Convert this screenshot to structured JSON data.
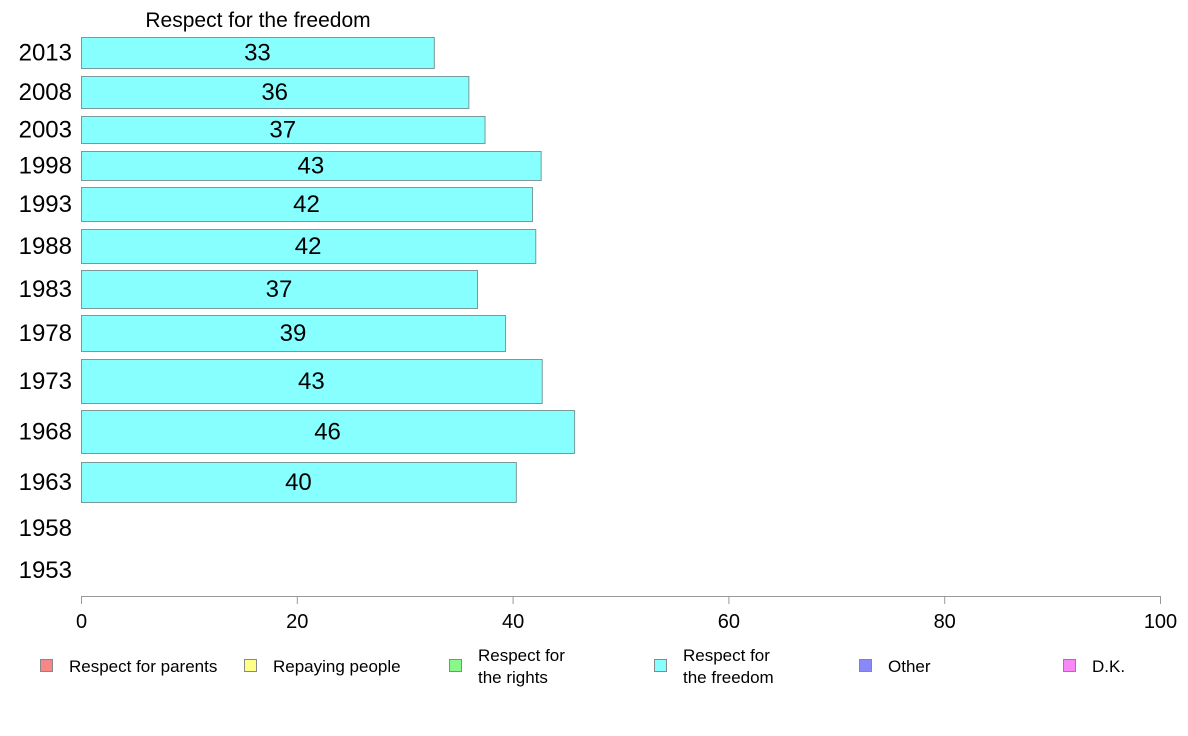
{
  "chart_data": {
    "type": "bar",
    "title": "Respect for the freedom",
    "categories": [
      "2013",
      "2008",
      "2003",
      "1998",
      "1993",
      "1988",
      "1983",
      "1978",
      "1973",
      "1968",
      "1963",
      "1958",
      "1953"
    ],
    "values": [
      32.7,
      35.9,
      37.4,
      42.6,
      41.8,
      42.1,
      36.7,
      39.3,
      42.7,
      45.7,
      40.3,
      null,
      null
    ],
    "labels": [
      "33",
      "36",
      "37",
      "43",
      "42",
      "42",
      "37",
      "39",
      "43",
      "46",
      "40",
      "",
      ""
    ],
    "xlim": [
      0,
      100
    ],
    "xticks": [
      "0",
      "20",
      "40",
      "60",
      "80",
      "100"
    ],
    "legend": [
      {
        "lines": [
          "Respect for parents"
        ],
        "color": "#f88888"
      },
      {
        "lines": [
          "Repaying people"
        ],
        "color": "#ffff88"
      },
      {
        "lines": [
          "Respect for",
          "the rights"
        ],
        "color": "#88f888"
      },
      {
        "lines": [
          "Respect for",
          "the freedom"
        ],
        "color": "#88ffff"
      },
      {
        "lines": [
          "Other"
        ],
        "color": "#8888f8"
      },
      {
        "lines": [
          "D.K."
        ],
        "color": "#f888f8"
      }
    ],
    "legend_position": "bottom",
    "bar_color": "#88ffff",
    "grid": false
  }
}
